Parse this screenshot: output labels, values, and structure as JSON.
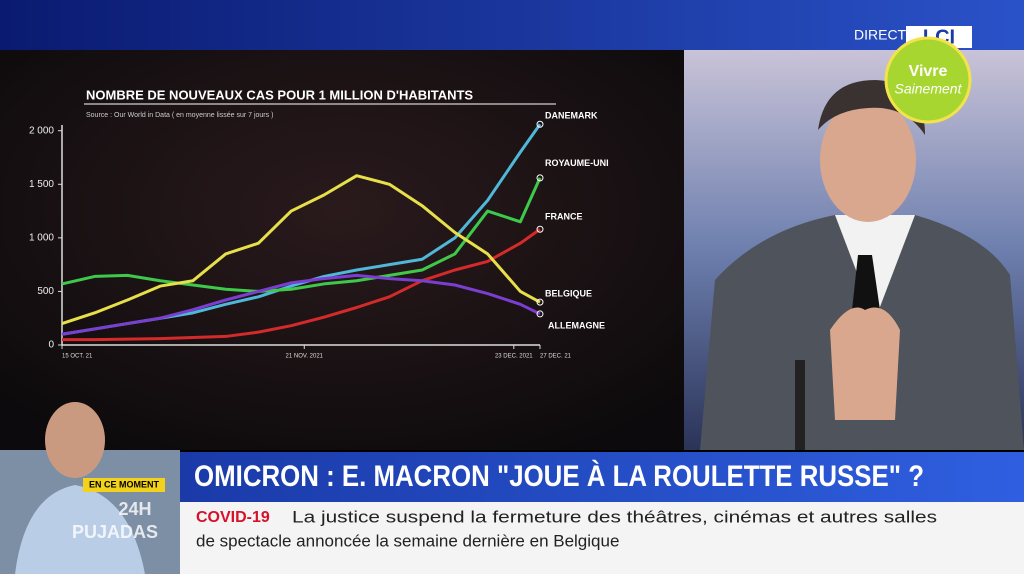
{
  "chart_data": {
    "type": "line",
    "title": "NOMBRE DE NOUVEAUX CAS POUR 1 MILLION D'HABITANTS",
    "subtitle": "Source : Our World in Data ( en moyenne lissée sur 7 jours )",
    "x": [
      0,
      5,
      10,
      15,
      20,
      25,
      30,
      35,
      40,
      45,
      50,
      55,
      60,
      65,
      70,
      73
    ],
    "xlim": [
      0,
      73
    ],
    "xticks": [
      {
        "value": 0,
        "label": "15 OCT. 21"
      },
      {
        "value": 37,
        "label": "21 NOV. 2021"
      },
      {
        "value": 69,
        "label": "23 DEC. 2021"
      },
      {
        "value": 73,
        "label": "27 DEC. 21"
      }
    ],
    "ylim": [
      0,
      2100
    ],
    "yticks": [
      0,
      500,
      {
        "value": 1000,
        "label": "1 000"
      },
      {
        "value": 1500,
        "label": "1 500"
      },
      {
        "value": 2000,
        "label": "2 000"
      }
    ],
    "series": [
      {
        "name": "DANEMARK",
        "color": "#4fb8d8",
        "values": [
          100,
          150,
          200,
          250,
          300,
          380,
          450,
          550,
          640,
          700,
          750,
          800,
          1000,
          1350,
          1800,
          2060
        ]
      },
      {
        "name": "ROYAUME-UNI",
        "color": "#3ec94a",
        "values": [
          570,
          640,
          650,
          600,
          560,
          520,
          500,
          520,
          570,
          600,
          650,
          700,
          850,
          1250,
          1150,
          1560
        ]
      },
      {
        "name": "FRANCE",
        "color": "#d42a2a",
        "values": [
          50,
          50,
          55,
          60,
          70,
          80,
          120,
          180,
          260,
          350,
          450,
          600,
          700,
          780,
          950,
          1080
        ]
      },
      {
        "name": "BELGIQUE",
        "color": "#e8e04a",
        "values": [
          200,
          300,
          420,
          550,
          600,
          850,
          950,
          1250,
          1400,
          1580,
          1500,
          1300,
          1050,
          850,
          500,
          400
        ]
      },
      {
        "name": "ALLEMAGNE",
        "color": "#7a3ed0",
        "values": [
          100,
          150,
          200,
          250,
          330,
          420,
          500,
          580,
          620,
          650,
          620,
          600,
          560,
          480,
          380,
          290
        ]
      }
    ]
  },
  "broadcast": {
    "direct": "DIRECT",
    "channel": "LCI",
    "badge": [
      "Vivre",
      "Sainement"
    ],
    "inset_tag": "EN CE MOMENT",
    "inset_show": [
      "24H",
      "PUJADAS"
    ],
    "headline": "OMICRON : E. MACRON \"JOUE À LA ROULETTE RUSSE\" ?",
    "ticker_tag": "COVID-19",
    "ticker": [
      "La justice suspend la fermeture des théâtres, cinémas et autres salles",
      "de spectacle annoncée la semaine dernière en Belgique"
    ]
  }
}
